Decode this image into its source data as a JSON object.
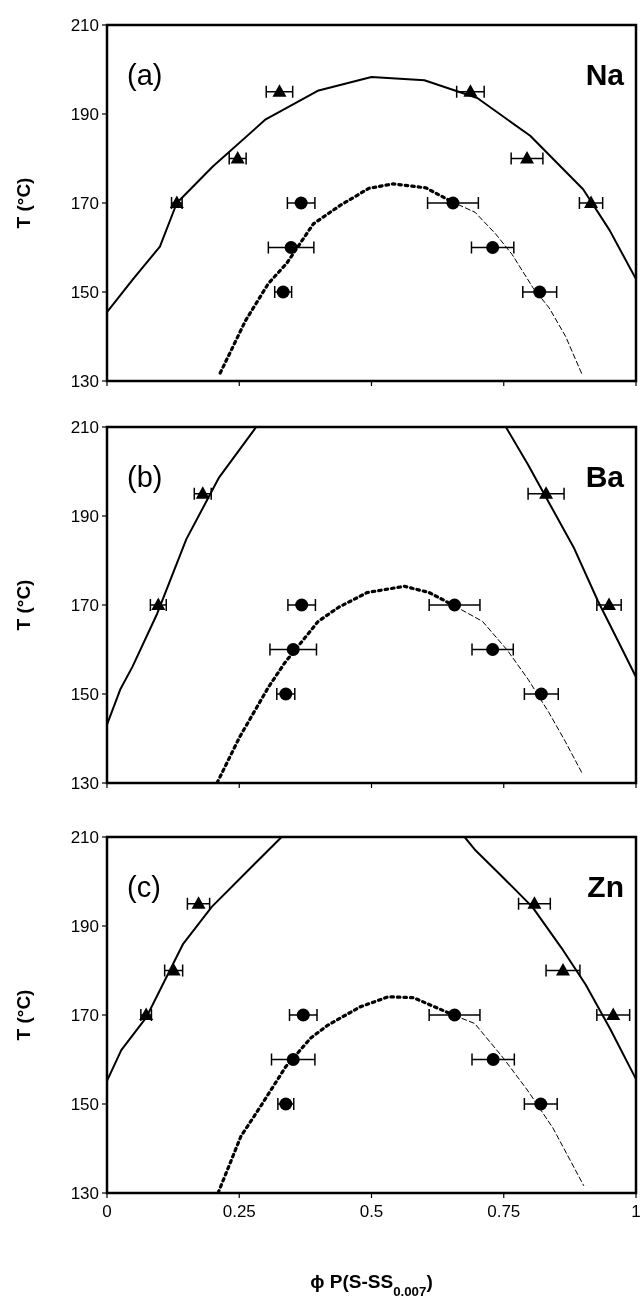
{
  "chart_data": [
    {
      "type": "scatter",
      "ylabel": "T (°C)",
      "annotations": [
        "(a)",
        "Na"
      ],
      "xlim": [
        0,
        1
      ],
      "ylim": [
        130,
        210
      ],
      "xticks": [
        0,
        0.25,
        0.5,
        0.75,
        1
      ],
      "yticks": [
        130,
        150,
        170,
        190,
        210
      ],
      "tick_labels": "y",
      "series": [
        {
          "type": "line",
          "color": "#000000",
          "marker": "none",
          "line_style": "solid",
          "x": [
            0,
            0.05,
            0.1,
            0.132,
            0.2,
            0.3,
            0.4,
            0.5,
            0.6,
            0.7,
            0.8,
            0.9,
            0.95,
            1
          ],
          "values": [
            145.5,
            153,
            160.2,
            170,
            178.2,
            188.8,
            195.3,
            198.3,
            197.6,
            193.6,
            185.1,
            173.1,
            163.9,
            152.9
          ]
        },
        {
          "type": "line",
          "color": "#000000",
          "marker": "none",
          "line_style": "dotted",
          "x": [
            0.214,
            0.262,
            0.305,
            0.34,
            0.39,
            0.44,
            0.495,
            0.541,
            0.603,
            0.65
          ],
          "values": [
            131.8,
            143.6,
            151.9,
            156.5,
            165.3,
            169.4,
            173.3,
            174.3,
            173.4,
            170.4
          ]
        },
        {
          "type": "line",
          "color": "#000000",
          "marker": "none",
          "line_style": "dashed",
          "x": [
            0.65,
            0.696,
            0.735,
            0.766,
            0.805,
            0.836,
            0.867,
            0.899
          ],
          "values": [
            170.4,
            167.9,
            163,
            158.4,
            151,
            146.4,
            140,
            131.2
          ]
        },
        {
          "color": "#000000",
          "marker": "triangle",
          "x": [
            0.326,
            0.687,
            0.247,
            0.794,
            0.132,
            0.915
          ],
          "values": [
            195,
            195,
            180,
            180,
            170,
            170
          ],
          "xerrors": [
            0.025,
            0.026,
            0.016,
            0.03,
            0.01,
            0.022
          ]
        },
        {
          "color": "#000000",
          "marker": "circle",
          "x": [
            0.367,
            0.348,
            0.333,
            0.654,
            0.729,
            0.818
          ],
          "values": [
            170,
            160,
            150,
            170,
            160,
            150
          ],
          "xerrors": [
            0.026,
            0.043,
            0.016,
            0.048,
            0.04,
            0.032
          ]
        }
      ]
    },
    {
      "type": "scatter",
      "ylabel": "T (°C)",
      "annotations": [
        "(b)",
        "Ba"
      ],
      "xlim": [
        0,
        1
      ],
      "ylim": [
        130,
        210
      ],
      "xticks": [
        0,
        0.25,
        0.5,
        0.75,
        1
      ],
      "yticks": [
        130,
        150,
        170,
        190,
        210
      ],
      "tick_labels": "y",
      "series": [
        {
          "type": "line",
          "color": "#000000",
          "marker": "none",
          "line_style": "solid",
          "x": [
            0,
            0.025,
            0.048,
            0.095,
            0.15,
            0.212,
            0.282,
            0.5,
            0.754,
            0.796,
            0.835,
            0.882,
            0.928,
            0.967,
            1
          ],
          "values": [
            143.1,
            151,
            156.1,
            168.1,
            184.8,
            198.7,
            210,
            null,
            210,
            201.5,
            193.1,
            183,
            170.9,
            161.7,
            153.8
          ]
        },
        {
          "type": "line",
          "color": "#000000",
          "marker": "none",
          "line_style": "dotted",
          "x": [
            0.208,
            0.251,
            0.305,
            0.336,
            0.399,
            0.438,
            0.492,
            0.562,
            0.609,
            0.657
          ],
          "values": [
            130,
            140.4,
            151.5,
            157,
            166.3,
            169.5,
            172.8,
            174.2,
            172.8,
            169.8
          ]
        },
        {
          "type": "line",
          "color": "#000000",
          "marker": "none",
          "line_style": "dashed",
          "x": [
            0.657,
            0.71,
            0.757,
            0.796,
            0.835,
            0.866,
            0.899
          ],
          "values": [
            169.8,
            166.3,
            159.8,
            153.3,
            145.9,
            139.4,
            132
          ]
        },
        {
          "color": "#000000",
          "marker": "triangle",
          "x": [
            0.181,
            0.097,
            0.83,
            0.949
          ],
          "values": [
            195,
            170,
            195,
            170
          ],
          "xerrors": [
            0.016,
            0.015,
            0.034,
            0.023
          ]
        },
        {
          "color": "#000000",
          "marker": "circle",
          "x": [
            0.368,
            0.352,
            0.338,
            0.657,
            0.729,
            0.821
          ],
          "values": [
            170,
            160,
            150,
            170,
            160,
            150
          ],
          "xerrors": [
            0.026,
            0.044,
            0.017,
            0.048,
            0.039,
            0.032
          ]
        }
      ]
    },
    {
      "type": "scatter",
      "ylabel": "T (°C)",
      "xlabel": "ϕ P(S-SS$_{0.007}$)",
      "annotations": [
        "(c)",
        "Zn"
      ],
      "xlim": [
        0,
        1
      ],
      "ylim": [
        130,
        210
      ],
      "xticks": [
        0,
        0.25,
        0.5,
        0.75,
        1
      ],
      "yticks": [
        130,
        150,
        170,
        190,
        210
      ],
      "series": [
        {
          "type": "line",
          "color": "#000000",
          "marker": "none",
          "line_style": "solid",
          "x": [
            0,
            0.027,
            0.074,
            0.144,
            0.198,
            0.26,
            0.33,
            0.5,
            0.676,
            0.695,
            0.742,
            0.804,
            0.859,
            0.905,
            0.952,
            1
          ],
          "values": [
            155.2,
            162.1,
            169.4,
            186,
            194.3,
            201.7,
            210,
            null,
            210,
            207.2,
            201.7,
            194.3,
            185.1,
            176.8,
            166.7,
            155.6
          ]
        },
        {
          "type": "line",
          "color": "#000000",
          "marker": "none",
          "line_style": "dotted",
          "x": [
            0.21,
            0.253,
            0.291,
            0.338,
            0.385,
            0.416,
            0.478,
            0.532,
            0.579,
            0.657
          ],
          "values": [
            130,
            142.7,
            149.6,
            158.4,
            164.8,
            167.6,
            171.8,
            174.1,
            173.9,
            169.9
          ]
        },
        {
          "type": "line",
          "color": "#000000",
          "marker": "none",
          "line_style": "dashed",
          "x": [
            0.657,
            0.695,
            0.75,
            0.796,
            0.843,
            0.901
          ],
          "values": [
            169.9,
            168.1,
            160.2,
            152.9,
            144.6,
            131.7
          ]
        },
        {
          "color": "#000000",
          "marker": "triangle",
          "x": [
            0.173,
            0.126,
            0.074,
            0.808,
            0.862,
            0.957
          ],
          "values": [
            195,
            180,
            170,
            195,
            180,
            170
          ],
          "xerrors": [
            0.021,
            0.017,
            0.01,
            0.03,
            0.032,
            0.031
          ]
        },
        {
          "color": "#000000",
          "marker": "circle",
          "x": [
            0.371,
            0.352,
            0.338,
            0.657,
            0.73,
            0.82
          ],
          "values": [
            170,
            160,
            150,
            170,
            160,
            150
          ],
          "xerrors": [
            0.026,
            0.041,
            0.015,
            0.048,
            0.04,
            0.031
          ]
        }
      ]
    }
  ]
}
